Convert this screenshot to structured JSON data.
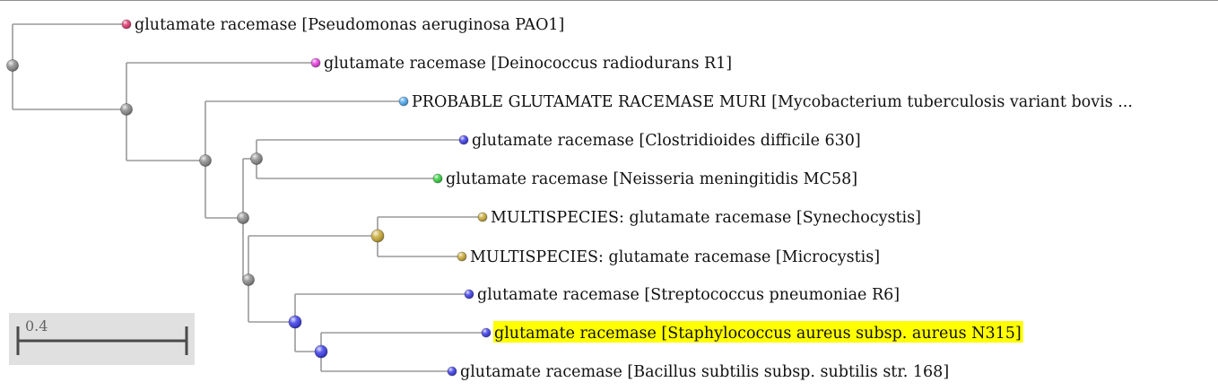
{
  "scale_bar": {
    "label": "0.4"
  },
  "node_color": "#8a8a8a",
  "leaves": [
    {
      "label": "glutamate racemase [Pseudomonas aeruginosa PAO1]",
      "color": "#e0346e",
      "highlighted": false
    },
    {
      "label": "glutamate racemase [Deinococcus radiodurans R1]",
      "color": "#e83ce0",
      "highlighted": false
    },
    {
      "label": "PROBABLE GLUTAMATE RACEMASE MURI [Mycobacterium tuberculosis variant bovis ...",
      "color": "#4aa8f0",
      "highlighted": false
    },
    {
      "label": "glutamate racemase [Clostridioides difficile 630]",
      "color": "#3a3ae8",
      "highlighted": false
    },
    {
      "label": "glutamate racemase [Neisseria meningitidis MC58]",
      "color": "#30d23a",
      "highlighted": false
    },
    {
      "label": "MULTISPECIES: glutamate racemase [Synechocystis]",
      "color": "#c8a832",
      "highlighted": false
    },
    {
      "label": "MULTISPECIES: glutamate racemase [Microcystis]",
      "color": "#c8a832",
      "highlighted": false
    },
    {
      "label": "glutamate racemase [Streptococcus pneumoniae R6]",
      "color": "#3a3ae8",
      "highlighted": false
    },
    {
      "label": "glutamate racemase [Staphylococcus aureus subsp. aureus N315]",
      "color": "#3a3ae8",
      "highlighted": true,
      "highlight_color": "#ffff00"
    },
    {
      "label": "glutamate racemase [Bacillus subtilis subsp. subtilis str. 168]",
      "color": "#3a3ae8",
      "highlighted": false
    }
  ],
  "internal_nodes": [
    {
      "color": "#8a8a8a"
    },
    {
      "color": "#8a8a8a"
    },
    {
      "color": "#8a8a8a"
    },
    {
      "color": "#8a8a8a"
    },
    {
      "color": "#8a8a8a"
    },
    {
      "color": "#c8a832"
    },
    {
      "color": "#8a8a8a"
    },
    {
      "color": "#3a3ae8"
    },
    {
      "color": "#3a3ae8"
    }
  ]
}
